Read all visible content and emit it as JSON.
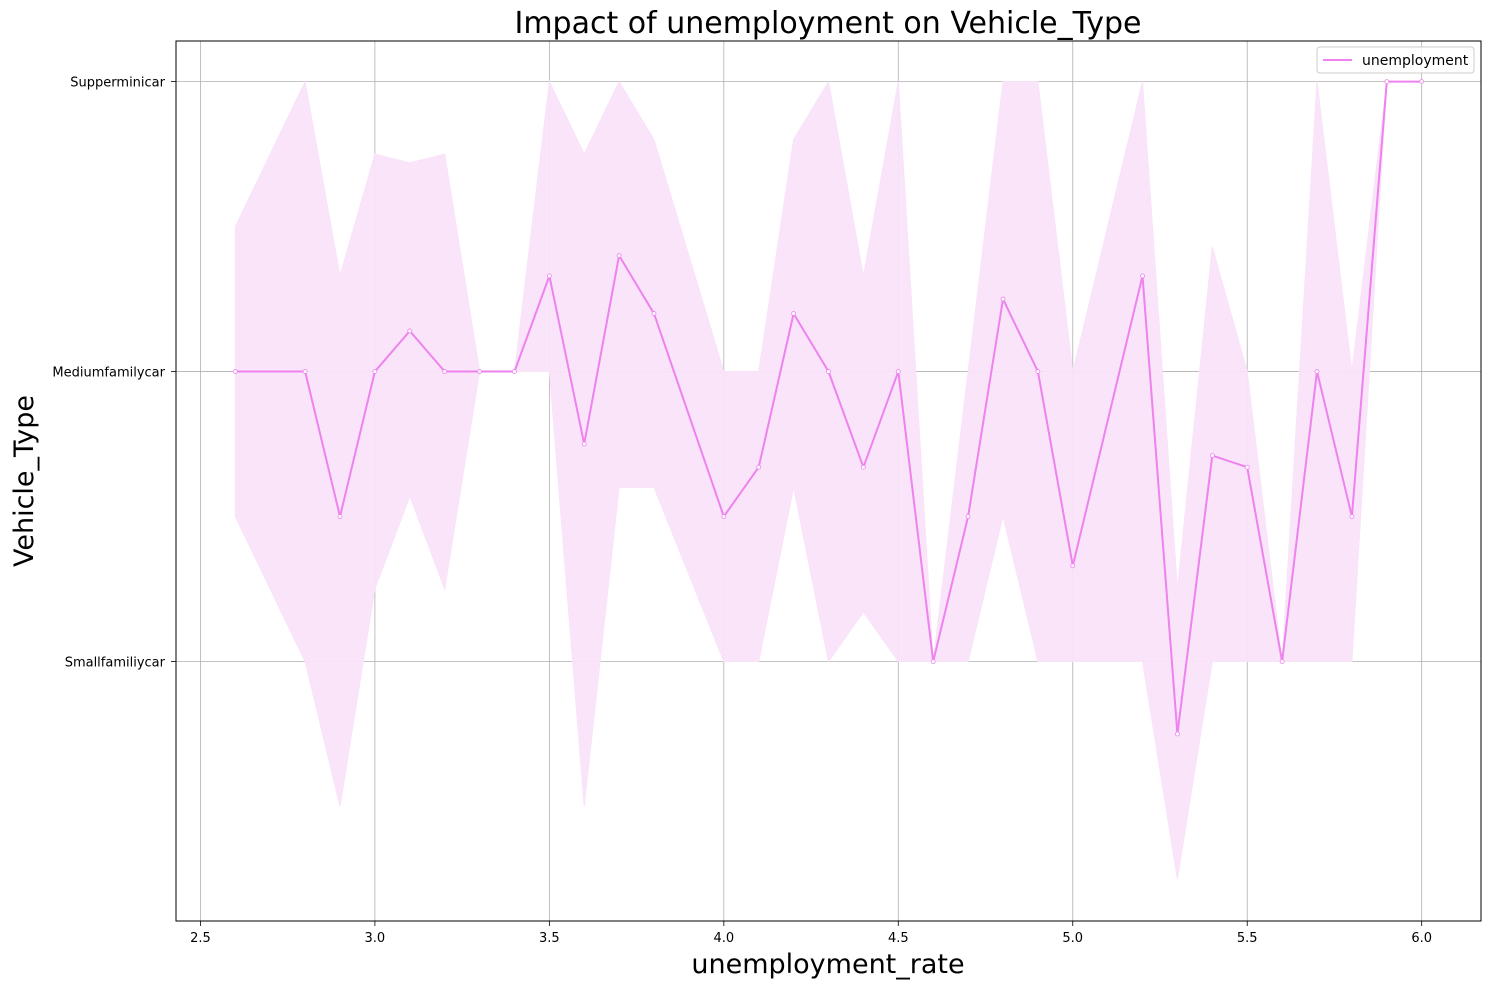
{
  "chart_data": {
    "type": "line",
    "title": "Impact of unemployment on Vehicle_Type",
    "xlabel": "unemployment_rate",
    "ylabel": "Vehicle_Type",
    "xlim": [
      2.43,
      6.17
    ],
    "ylim": [
      -0.895,
      2.14
    ],
    "x_ticks": [
      2.5,
      3.0,
      3.5,
      4.0,
      4.5,
      5.0,
      5.5,
      6.0
    ],
    "y_categories": [
      "Smallfamiliycar",
      "Mediumfamilycar",
      "Supperminicar"
    ],
    "grid": true,
    "legend_position": "top-right",
    "line_color": "#ee82ee",
    "band_color": "#f9e3f9",
    "series": [
      {
        "name": "unemployment",
        "x": [
          2.6,
          2.8,
          2.9,
          3.0,
          3.1,
          3.2,
          3.3,
          3.4,
          3.5,
          3.6,
          3.7,
          3.8,
          4.0,
          4.1,
          4.2,
          4.3,
          4.4,
          4.5,
          4.6,
          4.7,
          4.8,
          4.9,
          5.0,
          5.2,
          5.3,
          5.4,
          5.5,
          5.6,
          5.7,
          5.8,
          5.9,
          6.0
        ],
        "y": [
          1.0,
          1.0,
          0.5,
          1.0,
          1.14,
          1.0,
          1.0,
          1.0,
          1.33,
          0.75,
          1.4,
          1.2,
          0.5,
          0.67,
          1.2,
          1.0,
          0.67,
          1.0,
          0.0,
          0.5,
          1.25,
          1.0,
          0.33,
          1.33,
          -0.25,
          0.71,
          0.67,
          0.0,
          1.0,
          0.5,
          2.0,
          2.0
        ],
        "ci_low": [
          0.5,
          0.0,
          -0.5,
          0.25,
          0.57,
          0.25,
          1.0,
          1.0,
          1.0,
          -0.5,
          0.6,
          0.6,
          0.0,
          0.0,
          0.6,
          0.0,
          0.17,
          0.0,
          0.0,
          0.0,
          0.5,
          0.0,
          0.0,
          0.0,
          -0.75,
          0.0,
          0.0,
          0.0,
          0.0,
          0.0,
          2.0,
          2.0
        ],
        "ci_high": [
          1.5,
          2.0,
          1.33,
          1.75,
          1.72,
          1.75,
          1.0,
          1.0,
          2.0,
          1.75,
          2.0,
          1.8,
          1.0,
          1.0,
          1.8,
          2.0,
          1.33,
          2.0,
          0.0,
          1.0,
          2.0,
          2.0,
          1.0,
          2.0,
          0.25,
          1.43,
          1.0,
          0.0,
          2.0,
          1.0,
          2.0,
          2.0
        ]
      }
    ]
  }
}
